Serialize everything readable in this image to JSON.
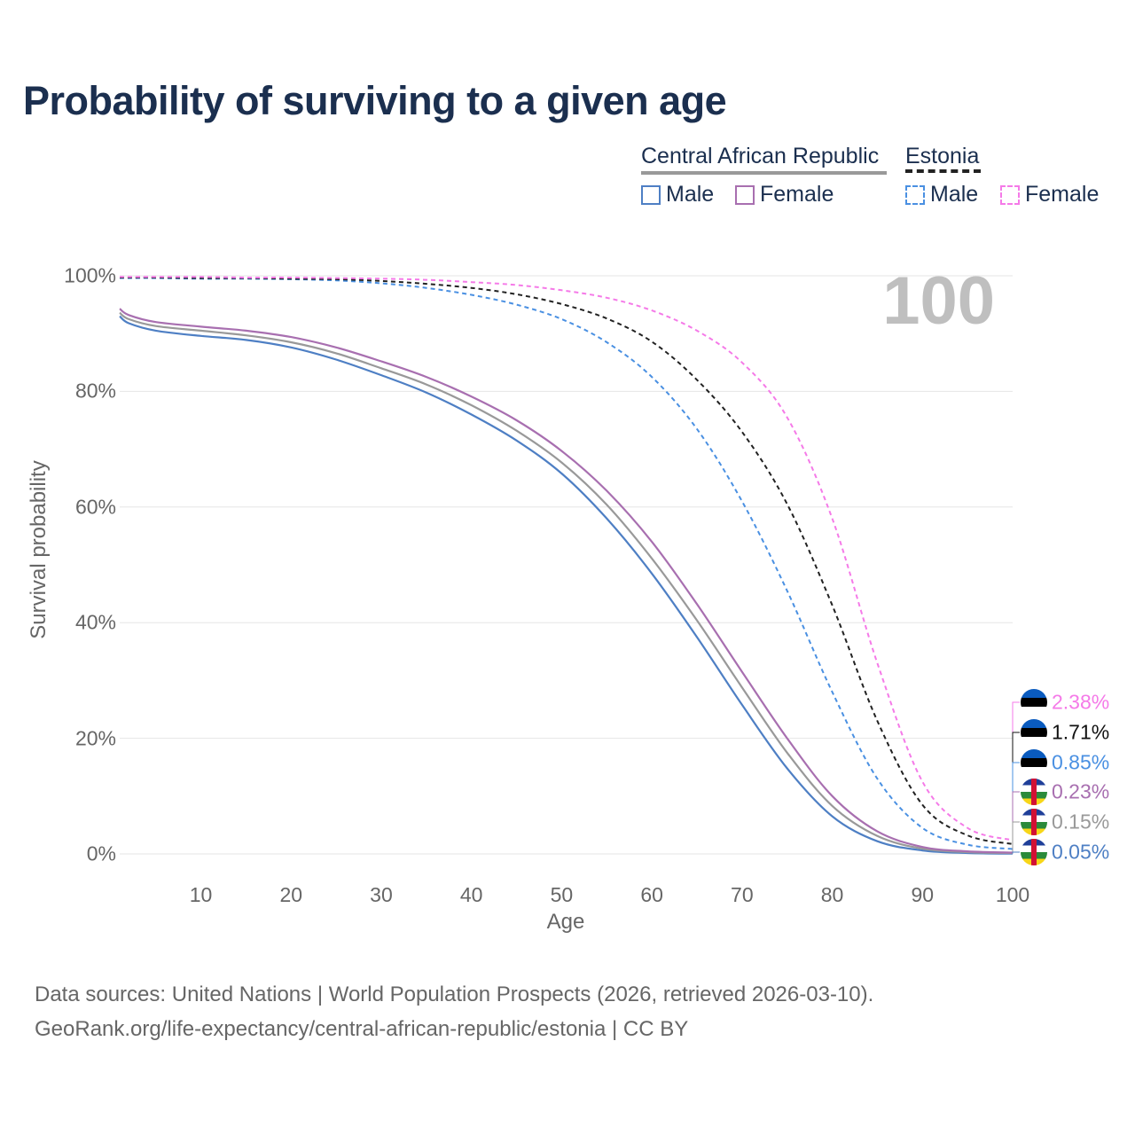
{
  "title": "Probability of surviving to a given age",
  "legend": {
    "groups": [
      {
        "name": "Central African Republic",
        "style": "solid",
        "color": "#999999",
        "items": [
          {
            "label": "Male",
            "color": "#4e7fc4"
          },
          {
            "label": "Female",
            "color": "#a86fb0"
          }
        ]
      },
      {
        "name": "Estonia",
        "style": "dashed",
        "color": "#222222",
        "items": [
          {
            "label": "Male",
            "color": "#4a90e2"
          },
          {
            "label": "Female",
            "color": "#f57ae8"
          }
        ]
      }
    ]
  },
  "age_indicator": "100",
  "source_lines": [
    "Data sources: United Nations | World Population Prospects (2026, retrieved 2026-03-10).",
    "GeoRank.org/life-expectancy/central-african-republic/estonia | CC BY"
  ],
  "end_labels": [
    {
      "text": "2.38%",
      "color": "#f57ae8",
      "flag": "estonia-flag"
    },
    {
      "text": "1.71%",
      "color": "#111111",
      "flag": "estonia-flag"
    },
    {
      "text": "0.85%",
      "color": "#4a90e2",
      "flag": "estonia-flag"
    },
    {
      "text": "0.23%",
      "color": "#a86fb0",
      "flag": "car-flag"
    },
    {
      "text": "0.15%",
      "color": "#999999",
      "flag": "car-flag"
    },
    {
      "text": "0.05%",
      "color": "#4e7fc4",
      "flag": "car-flag"
    }
  ],
  "chart_data": {
    "type": "line",
    "title": "Probability of surviving to a given age",
    "xlabel": "Age",
    "ylabel": "Survival probability",
    "xlim": [
      1,
      100
    ],
    "ylim": [
      0,
      100
    ],
    "xticks": [
      10,
      20,
      30,
      40,
      50,
      60,
      70,
      80,
      90,
      100
    ],
    "xtick_labels": [
      "10",
      "20",
      "30",
      "40",
      "50",
      "60",
      "70",
      "80",
      "90",
      "100"
    ],
    "yticks": [
      0,
      20,
      40,
      60,
      80,
      100
    ],
    "ytick_labels": [
      "0%",
      "20%",
      "40%",
      "60%",
      "80%",
      "100%"
    ],
    "grid": true,
    "legend_position": "top-right",
    "x": [
      1,
      2,
      5,
      10,
      15,
      20,
      25,
      30,
      35,
      40,
      45,
      50,
      55,
      60,
      65,
      70,
      75,
      80,
      85,
      90,
      95,
      100
    ],
    "series": [
      {
        "name": "Central African Republic – Male",
        "country": "Central African Republic",
        "sex": "Male",
        "color": "#4e7fc4",
        "dash": "solid",
        "values": [
          93.0,
          91.8,
          90.5,
          89.6,
          88.9,
          87.6,
          85.5,
          82.8,
          79.8,
          76.0,
          71.5,
          65.8,
          58.0,
          48.5,
          37.5,
          25.8,
          14.8,
          6.5,
          2.2,
          0.6,
          0.15,
          0.05
        ]
      },
      {
        "name": "Central African Republic – Both sexes",
        "country": "Central African Republic",
        "sex": "Both",
        "color": "#999999",
        "dash": "solid",
        "values": [
          93.6,
          92.5,
          91.3,
          90.5,
          89.7,
          88.5,
          86.6,
          84.0,
          81.2,
          77.6,
          73.2,
          67.7,
          60.4,
          51.1,
          40.4,
          28.8,
          17.5,
          8.3,
          3.1,
          0.9,
          0.3,
          0.15
        ]
      },
      {
        "name": "Central African Republic – Female",
        "country": "Central African Republic",
        "sex": "Female",
        "color": "#a86fb0",
        "dash": "solid",
        "values": [
          94.3,
          93.2,
          92.0,
          91.2,
          90.5,
          89.4,
          87.6,
          85.2,
          82.5,
          79.1,
          75.0,
          69.7,
          62.8,
          54.0,
          43.2,
          31.5,
          20.0,
          10.0,
          3.9,
          1.2,
          0.45,
          0.23
        ]
      },
      {
        "name": "Estonia – Male",
        "country": "Estonia",
        "sex": "Male",
        "color": "#4a90e2",
        "dash": "dashed",
        "values": [
          99.6,
          99.6,
          99.6,
          99.5,
          99.5,
          99.4,
          99.2,
          98.7,
          97.9,
          96.7,
          95.0,
          92.5,
          88.5,
          82.5,
          73.5,
          61.0,
          45.5,
          28.0,
          13.0,
          4.5,
          1.6,
          0.85
        ]
      },
      {
        "name": "Estonia – Both sexes",
        "country": "Estonia",
        "sex": "Both",
        "color": "#222222",
        "dash": "dashed",
        "values": [
          99.7,
          99.7,
          99.7,
          99.6,
          99.6,
          99.5,
          99.4,
          99.1,
          98.6,
          97.9,
          96.8,
          95.1,
          92.6,
          88.6,
          82.0,
          73.0,
          60.5,
          43.0,
          23.0,
          8.5,
          3.2,
          1.71
        ]
      },
      {
        "name": "Estonia – Female",
        "country": "Estonia",
        "sex": "Female",
        "color": "#f57ae8",
        "dash": "dashed",
        "values": [
          99.8,
          99.8,
          99.8,
          99.8,
          99.7,
          99.7,
          99.6,
          99.5,
          99.3,
          98.9,
          98.4,
          97.5,
          96.2,
          94.0,
          90.5,
          85.0,
          75.5,
          58.0,
          33.0,
          12.5,
          4.5,
          2.38
        ]
      }
    ]
  }
}
